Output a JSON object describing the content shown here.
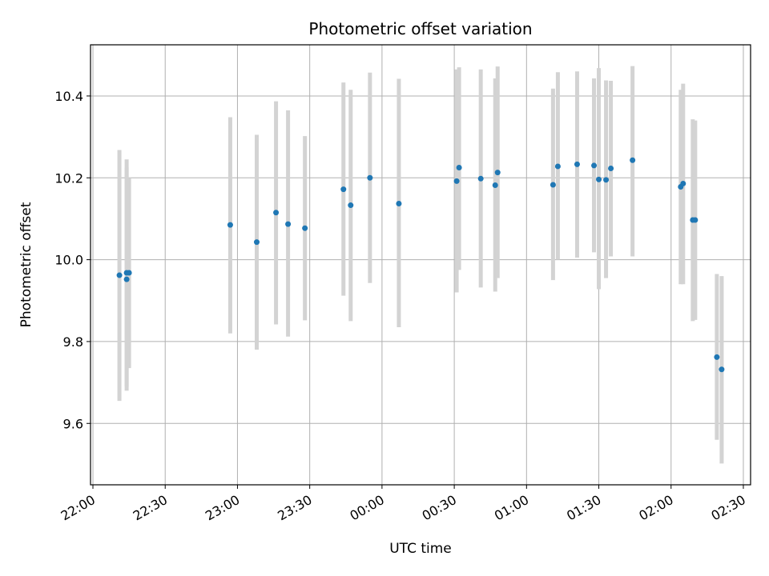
{
  "chart_data": {
    "type": "scatter",
    "title": "Photometric offset variation",
    "xlabel": "UTC time",
    "ylabel": "Photometric offset",
    "grid": true,
    "xlim": [
      "21:59",
      "02:33"
    ],
    "ylim": [
      9.45,
      10.525
    ],
    "x_ticks": [
      "22:00",
      "22:30",
      "23:00",
      "23:30",
      "00:00",
      "00:30",
      "01:00",
      "01:30",
      "02:00",
      "02:30"
    ],
    "y_ticks": [
      9.6,
      9.8,
      10.0,
      10.2,
      10.4
    ],
    "point_color": "#1f77b4",
    "errorbar_color": "#d3d3d3",
    "points": [
      {
        "x": "22:11",
        "y": 9.962,
        "ylo": 9.655,
        "yhi": 10.268
      },
      {
        "x": "22:14",
        "y": 9.952,
        "ylo": 9.68,
        "yhi": 10.225
      },
      {
        "x": "22:14",
        "y": 9.968,
        "ylo": 9.69,
        "yhi": 10.245
      },
      {
        "x": "22:15",
        "y": 9.968,
        "ylo": 9.735,
        "yhi": 10.2
      },
      {
        "x": "22:57",
        "y": 10.085,
        "ylo": 9.82,
        "yhi": 10.348
      },
      {
        "x": "23:08",
        "y": 10.043,
        "ylo": 9.78,
        "yhi": 10.305
      },
      {
        "x": "23:16",
        "y": 10.115,
        "ylo": 9.842,
        "yhi": 10.387
      },
      {
        "x": "23:21",
        "y": 10.087,
        "ylo": 9.812,
        "yhi": 10.365
      },
      {
        "x": "23:28",
        "y": 10.077,
        "ylo": 9.852,
        "yhi": 10.302
      },
      {
        "x": "23:44",
        "y": 10.172,
        "ylo": 9.912,
        "yhi": 10.433
      },
      {
        "x": "23:47",
        "y": 10.133,
        "ylo": 9.85,
        "yhi": 10.415
      },
      {
        "x": "23:55",
        "y": 10.2,
        "ylo": 9.943,
        "yhi": 10.457
      },
      {
        "x": "00:07",
        "y": 10.137,
        "ylo": 9.835,
        "yhi": 10.442
      },
      {
        "x": "00:31",
        "y": 10.192,
        "ylo": 9.92,
        "yhi": 10.465
      },
      {
        "x": "00:32",
        "y": 10.225,
        "ylo": 9.975,
        "yhi": 10.47
      },
      {
        "x": "00:41",
        "y": 10.198,
        "ylo": 9.932,
        "yhi": 10.465
      },
      {
        "x": "00:47",
        "y": 10.182,
        "ylo": 9.922,
        "yhi": 10.443
      },
      {
        "x": "00:48",
        "y": 10.213,
        "ylo": 9.955,
        "yhi": 10.472
      },
      {
        "x": "01:11",
        "y": 10.183,
        "ylo": 9.95,
        "yhi": 10.418
      },
      {
        "x": "01:13",
        "y": 10.228,
        "ylo": 10.0,
        "yhi": 10.458
      },
      {
        "x": "01:21",
        "y": 10.233,
        "ylo": 10.005,
        "yhi": 10.46
      },
      {
        "x": "01:28",
        "y": 10.23,
        "ylo": 10.018,
        "yhi": 10.443
      },
      {
        "x": "01:30",
        "y": 10.196,
        "ylo": 9.928,
        "yhi": 10.468
      },
      {
        "x": "01:33",
        "y": 10.195,
        "ylo": 9.955,
        "yhi": 10.438
      },
      {
        "x": "01:35",
        "y": 10.223,
        "ylo": 10.008,
        "yhi": 10.437
      },
      {
        "x": "01:44",
        "y": 10.243,
        "ylo": 10.008,
        "yhi": 10.473
      },
      {
        "x": "02:04",
        "y": 10.178,
        "ylo": 9.94,
        "yhi": 10.415
      },
      {
        "x": "02:05",
        "y": 10.186,
        "ylo": 9.94,
        "yhi": 10.43
      },
      {
        "x": "02:09",
        "y": 10.097,
        "ylo": 9.85,
        "yhi": 10.343
      },
      {
        "x": "02:10",
        "y": 10.097,
        "ylo": 9.853,
        "yhi": 10.34
      },
      {
        "x": "02:19",
        "y": 9.762,
        "ylo": 9.56,
        "yhi": 9.965
      },
      {
        "x": "02:21",
        "y": 9.732,
        "ylo": 9.502,
        "yhi": 9.96
      }
    ]
  }
}
